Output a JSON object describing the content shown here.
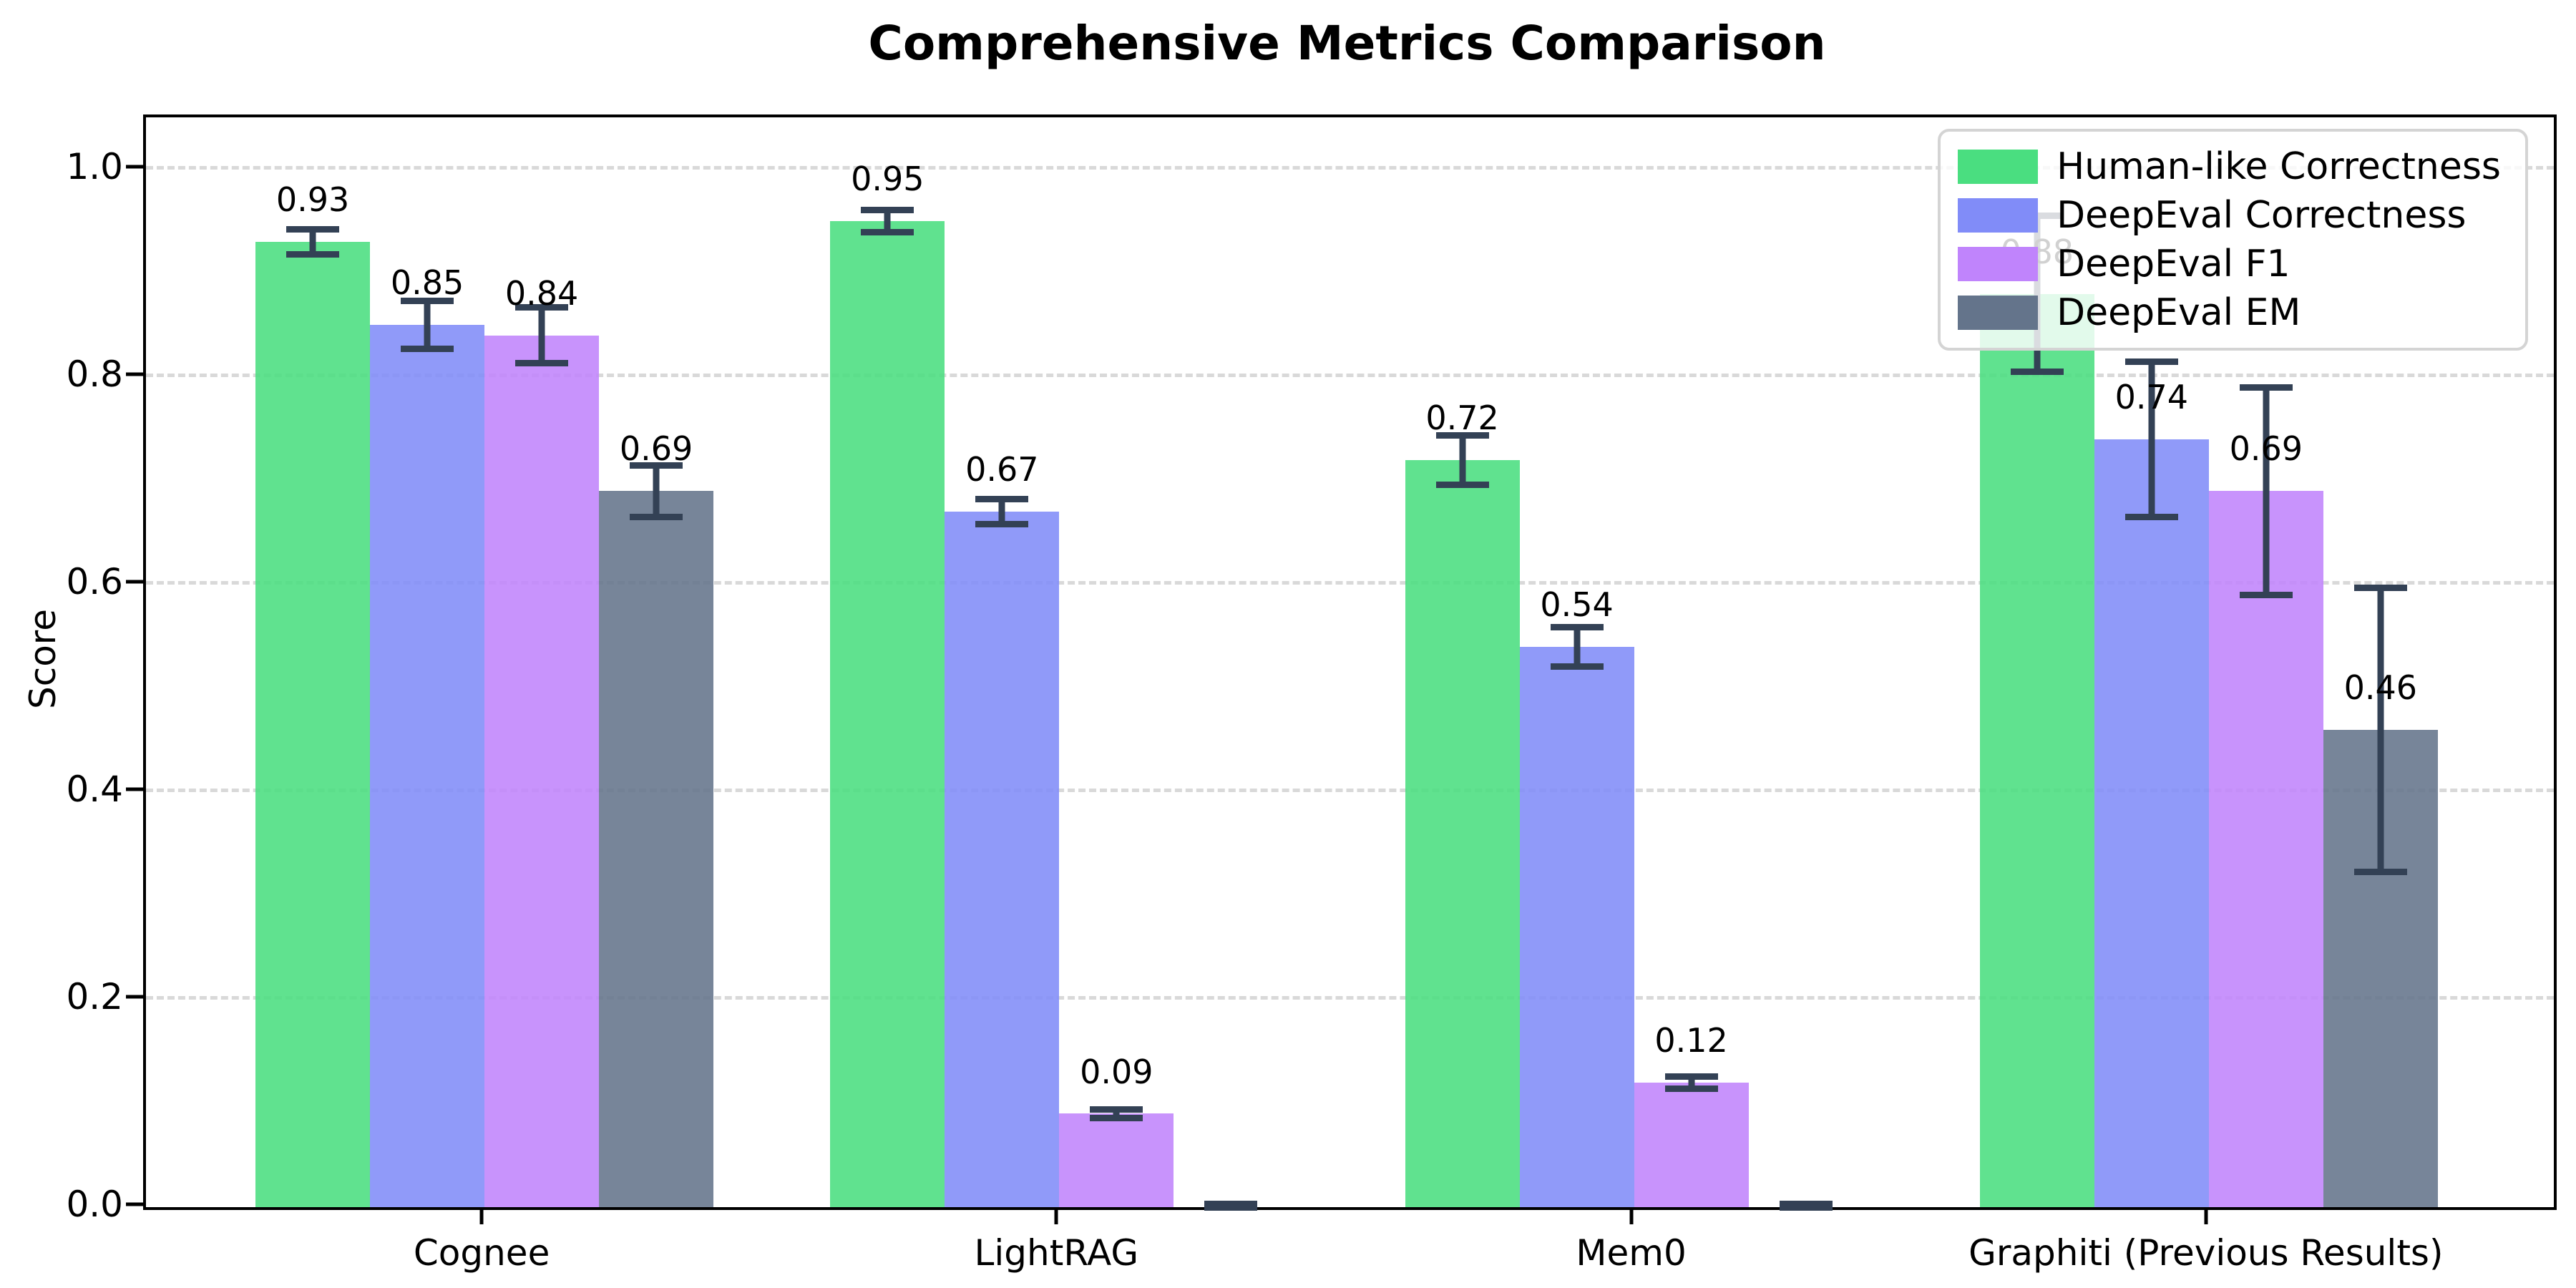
{
  "chart_data": {
    "type": "bar",
    "title": "Comprehensive Metrics Comparison",
    "xlabel": "",
    "ylabel": "Score",
    "categories": [
      "Cognee",
      "LightRAG",
      "Mem0",
      "Graphiti (Previous Results)"
    ],
    "series": [
      {
        "name": "Human-like Correctness",
        "color": "#4ade80",
        "values": [
          0.93,
          0.95,
          0.72,
          0.88
        ],
        "errors": [
          0.015,
          0.014,
          0.027,
          0.078
        ],
        "labels": [
          "0.93",
          "0.95",
          "0.72",
          "0.88"
        ]
      },
      {
        "name": "DeepEval Correctness",
        "color": "#818cf8",
        "values": [
          0.85,
          0.67,
          0.54,
          0.74
        ],
        "errors": [
          0.026,
          0.015,
          0.022,
          0.078
        ],
        "labels": [
          "0.85",
          "0.67",
          "0.54",
          "0.74"
        ]
      },
      {
        "name": "DeepEval F1",
        "color": "#c084fc",
        "values": [
          0.84,
          0.09,
          0.12,
          0.69
        ],
        "errors": [
          0.03,
          0.007,
          0.009,
          0.103
        ],
        "labels": [
          "0.84",
          "0.09",
          "0.12",
          "0.69"
        ]
      },
      {
        "name": "DeepEval EM",
        "color": "#64748b",
        "values": [
          0.69,
          0.0,
          0.0,
          0.46
        ],
        "errors": [
          0.028,
          0.003,
          0.003,
          0.14
        ],
        "labels": [
          "0.69",
          null,
          null,
          "0.46"
        ]
      }
    ],
    "ylim": [
      0,
      1.05
    ],
    "yticks": [
      {
        "value": 0.0,
        "label": "0.0"
      },
      {
        "value": 0.2,
        "label": "0.2"
      },
      {
        "value": 0.4,
        "label": "0.4"
      },
      {
        "value": 0.6,
        "label": "0.6"
      },
      {
        "value": 0.8,
        "label": "0.8"
      },
      {
        "value": 1.0,
        "label": "1.0"
      }
    ],
    "grid": "horizontal-dashed",
    "gridline_color": "#d9d9d9",
    "legend_position": "upper right",
    "error_bar_color": "#334155"
  }
}
